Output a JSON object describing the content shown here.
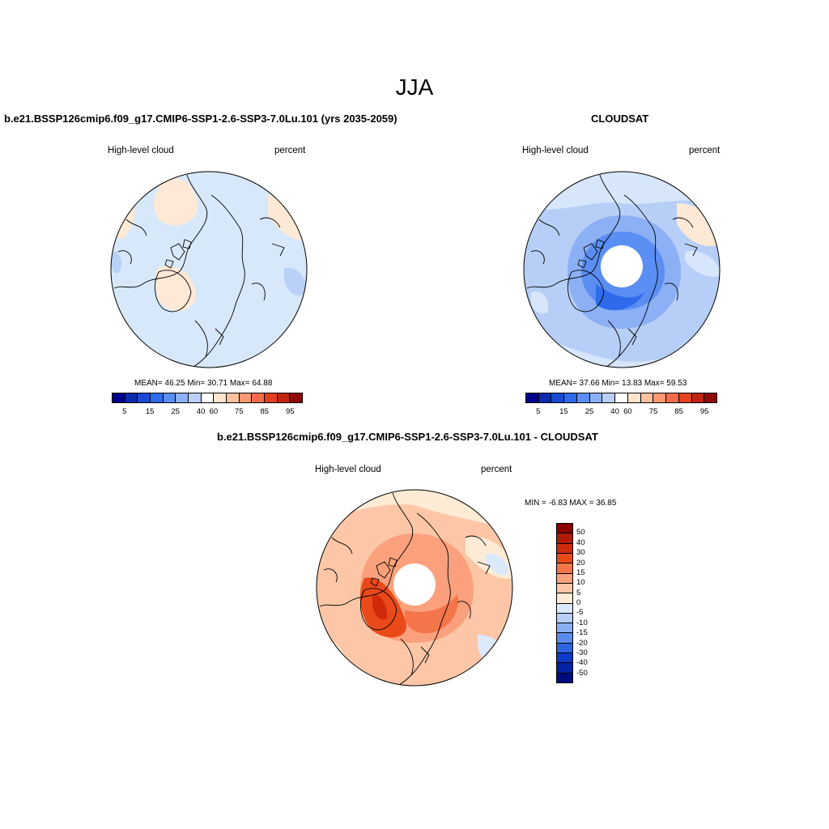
{
  "season": "JJA",
  "colors": {
    "abs_palette": [
      "#00008c",
      "#0a2bb0",
      "#1a4ad4",
      "#2e6bec",
      "#5b8ef2",
      "#8cb0f5",
      "#b8d0f8",
      "#ffffff",
      "#fde4cc",
      "#fcbfa0",
      "#fa9872",
      "#f66c4b",
      "#e5401f",
      "#c22412",
      "#8f0b07"
    ],
    "diff_palette": [
      "#8b0000",
      "#b01a08",
      "#d02a0a",
      "#ea4a1a",
      "#f5754a",
      "#fba07c",
      "#fdc7a7",
      "#feebd6",
      "#dce9fb",
      "#b7cef6",
      "#8ab0f2",
      "#5a8bec",
      "#2d62e2",
      "#0e3ac8",
      "#0522a2",
      "#000b80"
    ]
  },
  "panels": [
    {
      "title": "b.e21.BSSP126cmip6.f09_g17.CMIP6-SSP1-2.6-SSP3-7.0Lu.101 (yrs 2035-2059)",
      "left_label": "High-level cloud",
      "right_label": "percent",
      "stats": "MEAN=  46.25  Min=  30.71  Max=  64.88",
      "ticks": [
        "5",
        "15",
        "25",
        "40",
        "60",
        "75",
        "85",
        "95"
      ]
    },
    {
      "title": "CLOUDSAT",
      "left_label": "High-level cloud",
      "right_label": "percent",
      "stats": "MEAN=  37.66  Min=  13.83  Max=  59.53",
      "ticks": [
        "5",
        "15",
        "25",
        "40",
        "60",
        "75",
        "85",
        "95"
      ]
    },
    {
      "title": "b.e21.BSSP126cmip6.f09_g17.CMIP6-SSP1-2.6-SSP3-7.0Lu.101 - CLOUDSAT",
      "left_label": "High-level cloud",
      "right_label": "percent",
      "stats": "MIN =  -6.83 MAX =  36.85",
      "ticks": [
        "50",
        "40",
        "30",
        "20",
        "15",
        "10",
        "5",
        "0",
        "-5",
        "-10",
        "-15",
        "-20",
        "-30",
        "-40",
        "-50"
      ]
    }
  ]
}
